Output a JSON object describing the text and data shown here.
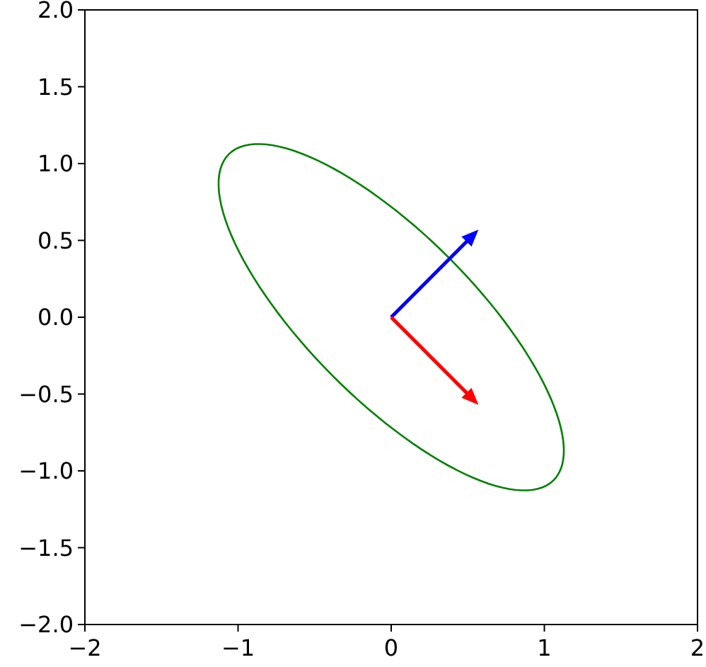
{
  "chart_data": {
    "type": "line",
    "xlim": [
      -2,
      2
    ],
    "ylim": [
      -2,
      2
    ],
    "xticks": [
      {
        "value": -2,
        "label": "−2"
      },
      {
        "value": -1,
        "label": "−1"
      },
      0,
      1,
      2
    ],
    "yticks": [
      {
        "value": -2,
        "label": "−2.0"
      },
      {
        "value": -1.5,
        "label": "−1.5"
      },
      {
        "value": -1,
        "label": "−1.0"
      },
      {
        "value": -0.5,
        "label": "−0.5"
      },
      {
        "value": 0,
        "label": "0.0"
      },
      {
        "value": 0.5,
        "label": "0.5"
      },
      {
        "value": 1,
        "label": "1.0"
      },
      {
        "value": 1.5,
        "label": "1.5"
      },
      {
        "value": 2,
        "label": "2.0"
      }
    ]
  }
}
